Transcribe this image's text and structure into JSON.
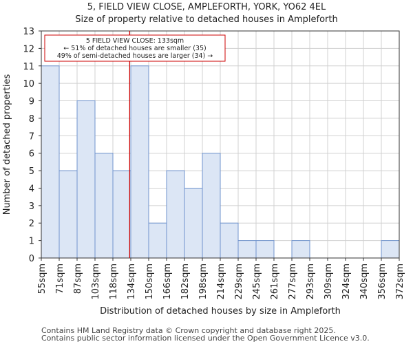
{
  "chart_data": {
    "type": "bar",
    "title_line1": "5, FIELD VIEW CLOSE, AMPLEFORTH, YORK, YO62 4EL",
    "title_line2": "Size of property relative to detached houses in Ampleforth",
    "xlabel": "Distribution of detached houses by size in Ampleforth",
    "ylabel": "Number of detached properties",
    "bin_edges": [
      "55sqm",
      "71sqm",
      "87sqm",
      "103sqm",
      "118sqm",
      "134sqm",
      "150sqm",
      "166sqm",
      "182sqm",
      "198sqm",
      "214sqm",
      "229sqm",
      "245sqm",
      "261sqm",
      "277sqm",
      "293sqm",
      "309sqm",
      "324sqm",
      "340sqm",
      "356sqm",
      "372sqm"
    ],
    "values": [
      11,
      5,
      9,
      6,
      5,
      11,
      2,
      5,
      4,
      6,
      2,
      1,
      1,
      0,
      1,
      0,
      0,
      0,
      0,
      1
    ],
    "ylim": [
      0,
      13
    ],
    "yticks": [
      0,
      1,
      2,
      3,
      4,
      5,
      6,
      7,
      8,
      9,
      10,
      11,
      12,
      13
    ],
    "marker_value_sqm": 133,
    "annotation": {
      "line1": "5 FIELD VIEW CLOSE: 133sqm",
      "line2": "← 51% of detached houses are smaller (35)",
      "line3": "49% of semi-detached houses are larger (34) →"
    },
    "colors": {
      "bar_fill": "#dce6f5",
      "bar_edge": "#6f93cd",
      "marker": "#cc0000",
      "grid": "#d0d0d0"
    }
  },
  "footer": {
    "line1": "Contains HM Land Registry data © Crown copyright and database right 2025.",
    "line2": "Contains public sector information licensed under the Open Government Licence v3.0."
  }
}
